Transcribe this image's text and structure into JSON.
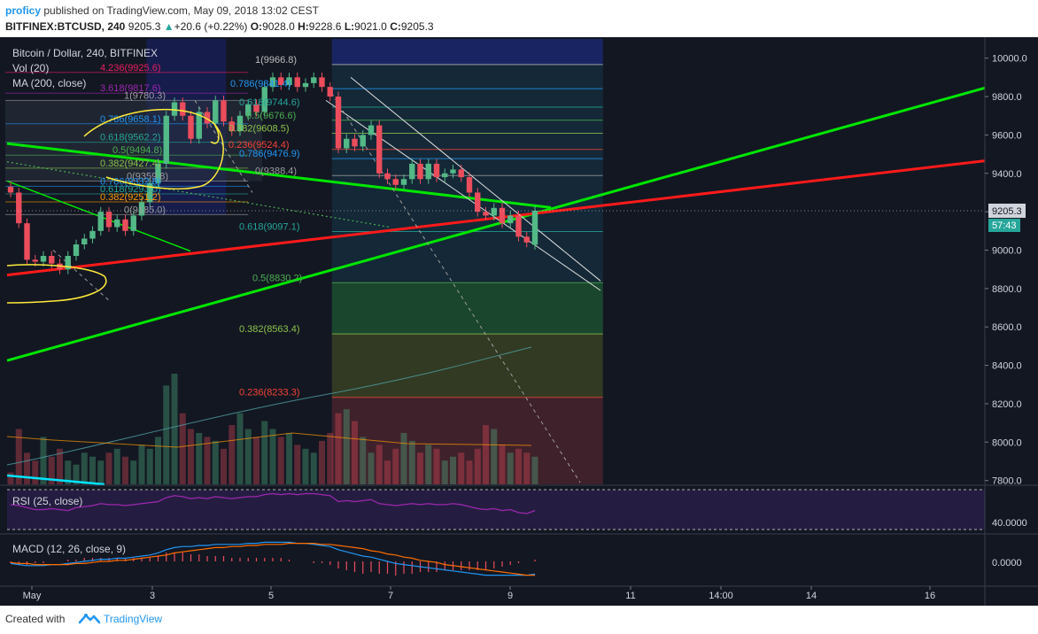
{
  "publish": {
    "author": "proficy",
    "text": "published on TradingView.com, May 09, 2018 13:02 CEST"
  },
  "symbol": {
    "pair": "BITFINEX:BTCUSD, 240",
    "price": "9205.3",
    "change": "+20.6 (+0.22%)",
    "open_label": "O:",
    "open": "9028.0",
    "high_label": "H:",
    "high": "9228.6",
    "low_label": "L:",
    "low": "9021.0",
    "close_label": "C:",
    "close": "9205.3"
  },
  "legend": {
    "title": "Bitcoin / Dollar, 240, BITFINEX",
    "vol": "Vol (20)",
    "ma": "MA (200, close)"
  },
  "rsi_label": "RSI (25, close)",
  "macd_label": "MACD (12, 26, close, 9)",
  "price_badge": "9205.3",
  "time_badge": "57:43",
  "footer": {
    "created": "Created with",
    "brand": "TradingView"
  },
  "colors": {
    "bg": "#131722",
    "up": "#53b987",
    "down": "#eb4d5c",
    "green_line": "#00e600",
    "red_line": "#ff1a1a",
    "highlight": "#ffeb3b",
    "fib_blue": "#2196f3",
    "fib_navy": "#1a237e"
  },
  "chart_data": {
    "type": "candlestick",
    "title": "Bitcoin / Dollar, 240, BITFINEX",
    "x_ticks": [
      "May",
      "3",
      "5",
      "7",
      "9",
      "11",
      "14:00",
      "14",
      "16"
    ],
    "y_ticks": [
      "10000.0",
      "9800.0",
      "9600.0",
      "9400.0",
      "9200.0",
      "9000.0",
      "8800.0",
      "8600.0",
      "8400.0",
      "8200.0",
      "8000.0",
      "7800.0"
    ],
    "ylim": [
      7780,
      10100
    ],
    "grid": false,
    "current_price": 9205.3,
    "candles": [
      {
        "o": 9330,
        "c": 9300
      },
      {
        "o": 9300,
        "c": 9140
      },
      {
        "o": 9140,
        "c": 8950
      },
      {
        "o": 8950,
        "c": 8940
      },
      {
        "o": 8940,
        "c": 8970
      },
      {
        "o": 8970,
        "c": 8930
      },
      {
        "o": 8930,
        "c": 8900
      },
      {
        "o": 8900,
        "c": 8970
      },
      {
        "o": 8970,
        "c": 9030
      },
      {
        "o": 9030,
        "c": 9060
      },
      {
        "o": 9060,
        "c": 9100
      },
      {
        "o": 9100,
        "c": 9200
      },
      {
        "o": 9200,
        "c": 9120
      },
      {
        "o": 9120,
        "c": 9160
      },
      {
        "o": 9160,
        "c": 9100
      },
      {
        "o": 9100,
        "c": 9180
      },
      {
        "o": 9180,
        "c": 9250
      },
      {
        "o": 9250,
        "c": 9350
      },
      {
        "o": 9350,
        "c": 9450
      },
      {
        "o": 9450,
        "c": 9700
      },
      {
        "o": 9700,
        "c": 9770
      },
      {
        "o": 9770,
        "c": 9700
      },
      {
        "o": 9700,
        "c": 9580
      },
      {
        "o": 9580,
        "c": 9720
      },
      {
        "o": 9720,
        "c": 9660
      },
      {
        "o": 9660,
        "c": 9780
      },
      {
        "o": 9780,
        "c": 9670
      },
      {
        "o": 9670,
        "c": 9620
      },
      {
        "o": 9620,
        "c": 9700
      },
      {
        "o": 9700,
        "c": 9760
      },
      {
        "o": 9760,
        "c": 9720
      },
      {
        "o": 9720,
        "c": 9850
      },
      {
        "o": 9850,
        "c": 9900
      },
      {
        "o": 9900,
        "c": 9860
      },
      {
        "o": 9860,
        "c": 9900
      },
      {
        "o": 9900,
        "c": 9850
      },
      {
        "o": 9850,
        "c": 9870
      },
      {
        "o": 9870,
        "c": 9900
      },
      {
        "o": 9900,
        "c": 9850
      },
      {
        "o": 9850,
        "c": 9800
      },
      {
        "o": 9800,
        "c": 9530
      },
      {
        "o": 9530,
        "c": 9580
      },
      {
        "o": 9580,
        "c": 9540
      },
      {
        "o": 9540,
        "c": 9600
      },
      {
        "o": 9600,
        "c": 9650
      },
      {
        "o": 9650,
        "c": 9400
      },
      {
        "o": 9400,
        "c": 9370
      },
      {
        "o": 9370,
        "c": 9340
      },
      {
        "o": 9340,
        "c": 9370
      },
      {
        "o": 9370,
        "c": 9450
      },
      {
        "o": 9450,
        "c": 9370
      },
      {
        "o": 9370,
        "c": 9450
      },
      {
        "o": 9450,
        "c": 9380
      },
      {
        "o": 9380,
        "c": 9400
      },
      {
        "o": 9400,
        "c": 9420
      },
      {
        "o": 9420,
        "c": 9380
      },
      {
        "o": 9380,
        "c": 9300
      },
      {
        "o": 9300,
        "c": 9200
      },
      {
        "o": 9200,
        "c": 9180
      },
      {
        "o": 9180,
        "c": 9220
      },
      {
        "o": 9220,
        "c": 9140
      },
      {
        "o": 9140,
        "c": 9180
      },
      {
        "o": 9180,
        "c": 9070
      },
      {
        "o": 9070,
        "c": 9040
      },
      {
        "o": 9028,
        "c": 9205.3
      }
    ],
    "fib_right": [
      {
        "label": "1(9966.8)",
        "v": 9966.8
      },
      {
        "label": "0.786(9841.4)",
        "v": 9841.4
      },
      {
        "label": "0.618(9744.6)",
        "v": 9744.6
      },
      {
        "label": "0.5(9676.6)",
        "v": 9676.6
      },
      {
        "label": "0.382(9608.5)",
        "v": 9608.5
      },
      {
        "label": "0.236(9524.4)",
        "v": 9524.4
      },
      {
        "label": "0.786(9476.9)",
        "v": 9476.9
      },
      {
        "label": "0(9388.4)",
        "v": 9388.4
      },
      {
        "label": "0.618(9097.1)",
        "v": 9097.1
      },
      {
        "label": "0.5(8830.2)",
        "v": 8830.2
      },
      {
        "label": "0.382(8563.4)",
        "v": 8563.4
      },
      {
        "label": "0.236(8233.3)",
        "v": 8233.3
      }
    ],
    "fib_left": [
      {
        "label": "4.236(9925.6)",
        "v": 9925.6,
        "c": "#e91e63"
      },
      {
        "label": "3.618(9817.6)",
        "v": 9817.6,
        "c": "#9c27b0"
      },
      {
        "label": "1(9780.3)",
        "v": 9780.3,
        "c": "#9e9e9e"
      },
      {
        "label": "0.786(9658.1)",
        "v": 9658.1,
        "c": "#2196f3"
      },
      {
        "label": "0.618(9562.2)",
        "v": 9562.2,
        "c": "#26a69a"
      },
      {
        "label": "0.5(9494.8)",
        "v": 9494.8,
        "c": "#4caf50"
      },
      {
        "label": "0.382(9427.4)",
        "v": 9427.4,
        "c": "#8bc34a"
      },
      {
        "label": "0(9359.8)",
        "v": 9359.8,
        "c": "#9e9e9e"
      },
      {
        "label": "0.786(9332.8)",
        "v": 9332.8,
        "c": "#2196f3"
      },
      {
        "label": "0.618(9293.0)",
        "v": 9293.0,
        "c": "#26a69a"
      },
      {
        "label": "0.382(9251.2)",
        "v": 9251.2,
        "c": "#ff9800"
      },
      {
        "label": "0(9185.0)",
        "v": 9185.0,
        "c": "#9e9e9e"
      }
    ],
    "volume": [
      3,
      14,
      8,
      6,
      12,
      7,
      9,
      6,
      5,
      8,
      7,
      6,
      8,
      9,
      7,
      6,
      10,
      9,
      12,
      25,
      28,
      18,
      14,
      13,
      12,
      11,
      9,
      15,
      18,
      14,
      12,
      16,
      14,
      12,
      13,
      10,
      9,
      8,
      11,
      13,
      18,
      19,
      16,
      12,
      8,
      10,
      6,
      9,
      13,
      11,
      8,
      10,
      9,
      6,
      7,
      8,
      6,
      9,
      15,
      14,
      10,
      8,
      9,
      8,
      7
    ],
    "rsi": [
      55,
      54,
      52,
      50,
      50,
      51,
      50,
      49,
      52,
      53,
      54,
      56,
      55,
      55,
      54,
      55,
      56,
      57,
      58,
      62,
      64,
      63,
      61,
      62,
      61,
      63,
      62,
      61,
      62,
      63,
      63,
      65,
      66,
      65,
      66,
      65,
      66,
      66,
      65,
      64,
      58,
      59,
      58,
      59,
      60,
      56,
      55,
      54,
      55,
      56,
      55,
      56,
      55,
      55,
      56,
      55,
      53,
      51,
      50,
      51,
      49,
      50,
      47,
      46,
      49
    ],
    "macd": [
      -2,
      -3,
      -4,
      -4,
      -4,
      -3,
      -3,
      -2,
      -1,
      0,
      1,
      2,
      2,
      3,
      3,
      4,
      5,
      6,
      8,
      11,
      13,
      14,
      14,
      15,
      15,
      16,
      16,
      16,
      16,
      17,
      17,
      18,
      18,
      18,
      18,
      17,
      17,
      16,
      15,
      14,
      11,
      9,
      7,
      5,
      4,
      2,
      0,
      -2,
      -3,
      -4,
      -5,
      -6,
      -7,
      -8,
      -9,
      -10,
      -11,
      -12,
      -13,
      -13,
      -13,
      -13,
      -13,
      -13,
      -12
    ],
    "signal": [
      -1,
      -2,
      -2,
      -3,
      -3,
      -3,
      -3,
      -3,
      -2,
      -2,
      -1,
      0,
      0,
      1,
      1,
      2,
      3,
      4,
      5,
      6,
      8,
      9,
      10,
      11,
      12,
      13,
      13,
      14,
      14,
      15,
      15,
      16,
      16,
      16,
      17,
      17,
      17,
      17,
      16,
      16,
      15,
      14,
      13,
      12,
      10,
      9,
      7,
      6,
      4,
      3,
      1,
      0,
      -1,
      -3,
      -4,
      -5,
      -6,
      -7,
      -8,
      -9,
      -10,
      -11,
      -12,
      -13,
      -13
    ],
    "rsi_levels": [
      70,
      30
    ],
    "rsi_ticks": [
      "40.0000"
    ],
    "macd_ticks": [
      "0.0000"
    ]
  }
}
